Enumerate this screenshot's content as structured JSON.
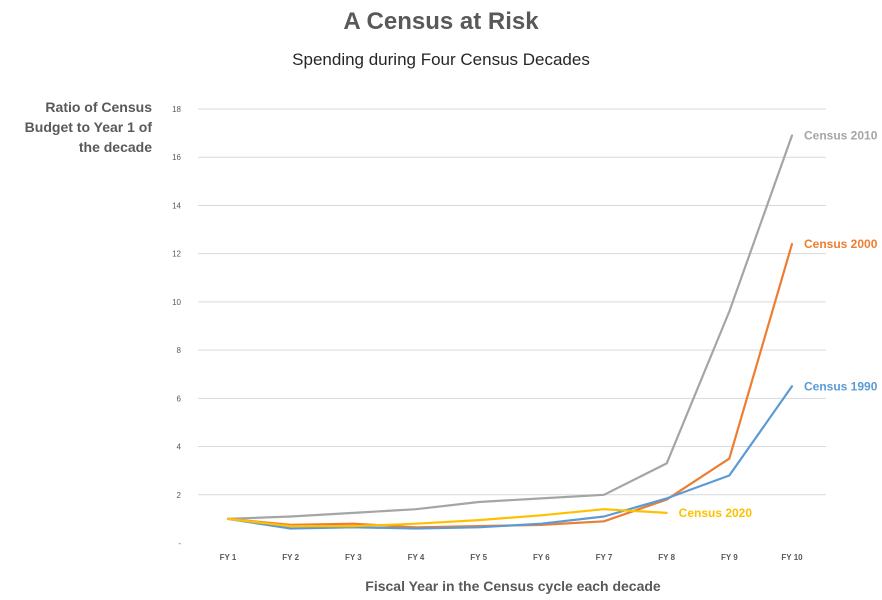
{
  "chart_data": {
    "type": "line",
    "title": "A Census at Risk",
    "subtitle": "Spending during Four Census Decades",
    "ylabel": "Ratio of Census Budget to Year 1 of the decade",
    "xlabel": "Fiscal Year in the Census cycle each decade",
    "categories": [
      "FY 1",
      "FY 2",
      "FY 3",
      "FY 4",
      "FY 5",
      "FY 6",
      "FY 7",
      "FY 8",
      "FY 9",
      "FY 10"
    ],
    "ylim": [
      0,
      18
    ],
    "yticks": [
      {
        "value": 0,
        "label": "-"
      },
      {
        "value": 2,
        "label": "2"
      },
      {
        "value": 4,
        "label": "4"
      },
      {
        "value": 6,
        "label": "6"
      },
      {
        "value": 8,
        "label": "8"
      },
      {
        "value": 10,
        "label": "10"
      },
      {
        "value": 12,
        "label": "12"
      },
      {
        "value": 14,
        "label": "14"
      },
      {
        "value": 16,
        "label": "16"
      },
      {
        "value": 18,
        "label": "18"
      }
    ],
    "grid": true,
    "series": [
      {
        "name": "Census 2010",
        "color": "#a5a5a5",
        "values": [
          1.0,
          1.1,
          1.25,
          1.4,
          1.7,
          1.85,
          2.0,
          3.3,
          9.6,
          16.9
        ]
      },
      {
        "name": "Census 2000",
        "color": "#ed7d31",
        "values": [
          1.0,
          0.75,
          0.8,
          0.65,
          0.7,
          0.75,
          0.9,
          1.8,
          3.5,
          12.4
        ]
      },
      {
        "name": "Census 1990",
        "color": "#5b9bd5",
        "values": [
          1.0,
          0.6,
          0.65,
          0.6,
          0.65,
          0.8,
          1.1,
          1.85,
          2.8,
          6.5
        ]
      },
      {
        "name": "Census 2020",
        "color": "#ffc000",
        "values": [
          1.0,
          0.7,
          0.7,
          0.8,
          0.95,
          1.15,
          1.4,
          1.25,
          null,
          null
        ]
      }
    ]
  }
}
